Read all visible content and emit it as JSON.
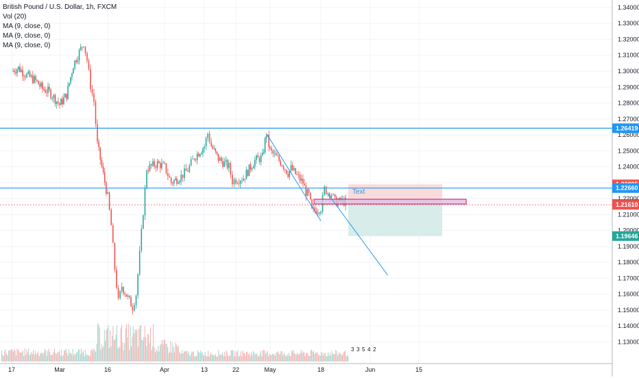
{
  "header": {
    "title": "British Pound / U.S. Dollar, 1h, FXCM",
    "indicators": [
      "Vol (20)",
      "MA (9, close, 0)",
      "MA (9, close, 0)",
      "MA (9, close, 0)"
    ]
  },
  "colors": {
    "up": "#26a69a",
    "down": "#ef5350",
    "level_line": "#2196f3",
    "price_label_blue": "#2196f3",
    "price_label_red": "#ef5350",
    "price_label_gray": "#555555",
    "price_label_green": "#26a69a",
    "target_zone": "#d8ecea",
    "stop_zone": "#f8dcdc",
    "annotation_text": "#2196f3",
    "highlight_box": "#e1bee7"
  },
  "chart_data": {
    "type": "candlestick",
    "symbol": "GBPUSD",
    "timeframe": "1h",
    "source": "FXCM",
    "y_axis": {
      "ticks": [
        "1.34000",
        "1.33000",
        "1.32000",
        "1.31000",
        "1.30000",
        "1.29000",
        "1.28000",
        "1.27000",
        "1.26000",
        "1.25000",
        "1.24000",
        "1.23000",
        "1.22000",
        "1.21000",
        "1.20000",
        "1.19000",
        "1.18000",
        "1.17000",
        "1.16000",
        "1.15000",
        "1.14000",
        "1.13000"
      ],
      "range": [
        1.125,
        1.343
      ]
    },
    "x_axis": {
      "ticks": [
        "17",
        "Mar",
        "16",
        "Apr",
        "13",
        "22",
        "May",
        "18",
        "Jun",
        "15"
      ]
    },
    "price_path": [
      [
        "Feb 17",
        1.3
      ],
      [
        "Feb 19",
        1.302
      ],
      [
        "Feb 21",
        1.298
      ],
      [
        "Feb 24",
        1.294
      ],
      [
        "Feb 26",
        1.289
      ],
      [
        "Feb 28",
        1.287
      ],
      [
        "Mar 02",
        1.279
      ],
      [
        "Mar 04",
        1.285
      ],
      [
        "Mar 06",
        1.304
      ],
      [
        "Mar 09",
        1.318
      ],
      [
        "Mar 10",
        1.307
      ],
      [
        "Mar 11",
        1.291
      ],
      [
        "Mar 12",
        1.281
      ],
      [
        "Mar 13",
        1.254
      ],
      [
        "Mar 16",
        1.221
      ],
      [
        "Mar 17",
        1.203
      ],
      [
        "Mar 18",
        1.176
      ],
      [
        "Mar 19",
        1.155
      ],
      [
        "Mar 20",
        1.165
      ],
      [
        "Mar 23",
        1.152
      ],
      [
        "Mar 24",
        1.16
      ],
      [
        "Mar 25",
        1.185
      ],
      [
        "Mar 26",
        1.212
      ],
      [
        "Mar 27",
        1.239
      ],
      [
        "Mar 30",
        1.242
      ],
      [
        "Apr 01",
        1.24
      ],
      [
        "Apr 03",
        1.23
      ],
      [
        "Apr 06",
        1.234
      ],
      [
        "Apr 08",
        1.238
      ],
      [
        "Apr 10",
        1.246
      ],
      [
        "Apr 13",
        1.253
      ],
      [
        "Apr 14",
        1.261
      ],
      [
        "Apr 15",
        1.253
      ],
      [
        "Apr 17",
        1.245
      ],
      [
        "Apr 20",
        1.24
      ],
      [
        "Apr 21",
        1.231
      ],
      [
        "Apr 22",
        1.232
      ],
      [
        "Apr 24",
        1.233
      ],
      [
        "Apr 27",
        1.244
      ],
      [
        "Apr 29",
        1.246
      ],
      [
        "Apr 30",
        1.261
      ],
      [
        "May 01",
        1.25
      ],
      [
        "May 04",
        1.244
      ],
      [
        "May 05",
        1.242
      ],
      [
        "May 06",
        1.239
      ],
      [
        "May 07",
        1.236
      ],
      [
        "May 08",
        1.239
      ],
      [
        "May 11",
        1.232
      ],
      [
        "May 12",
        1.23
      ],
      [
        "May 13",
        1.224
      ],
      [
        "May 14",
        1.222
      ],
      [
        "May 15",
        1.212
      ],
      [
        "May 18",
        1.214
      ],
      [
        "May 19",
        1.226
      ],
      [
        "May 20",
        1.224
      ],
      [
        "May 21",
        1.223
      ],
      [
        "May 22",
        1.218
      ],
      [
        "May 25",
        1.218
      ]
    ],
    "horizontal_levels": [
      1.26419,
      1.2266
    ],
    "price_labels": [
      {
        "value": "1.26419",
        "color_key": "price_label_blue"
      },
      {
        "value": "1.22895",
        "color_key": "price_label_red"
      },
      {
        "value": "1.22660",
        "color_key": "price_label_blue"
      },
      {
        "value": "1.21651",
        "color_key": "price_label_gray"
      },
      {
        "value": "1.21610",
        "color_key": "price_label_red"
      },
      {
        "value": "1.19646",
        "color_key": "price_label_green"
      }
    ],
    "position_tool": {
      "entry": 1.21651,
      "stop": 1.22895,
      "target": 1.19646,
      "label": "Text"
    },
    "trend_lines": [
      {
        "from": [
          "Apr 30",
          1.261
        ],
        "to": [
          "May 18",
          1.206
        ]
      },
      {
        "from": [
          "May 20",
          1.223
        ],
        "to": [
          "Jun 06",
          1.172
        ]
      }
    ],
    "volume_markers": [
      "3",
      "3",
      "5",
      "4",
      "2"
    ],
    "grid": true
  }
}
